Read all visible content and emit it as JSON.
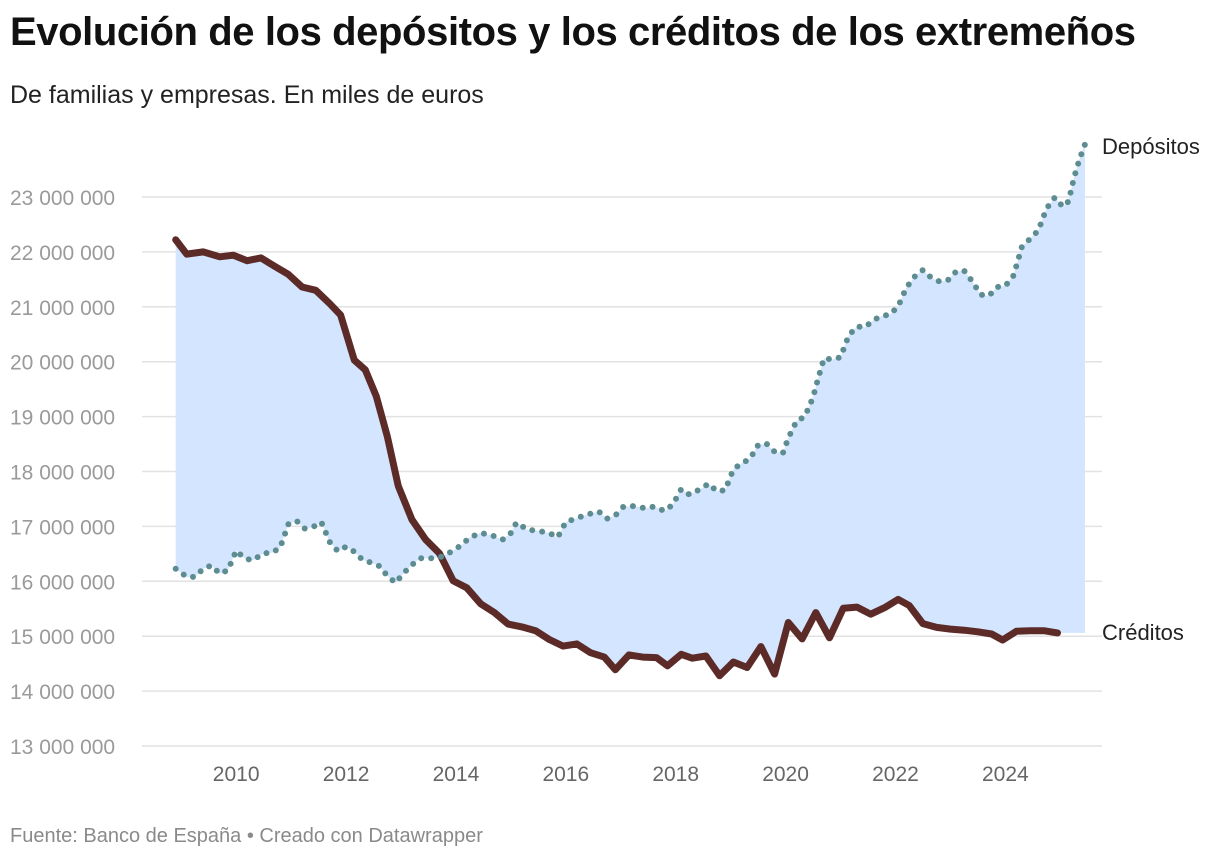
{
  "chart_data": {
    "type": "line",
    "title": "Evolución de los depósitos y los créditos de los extremeños",
    "subtitle": "De familias y empresas. En miles de euros",
    "source": "Fuente: Banco de España • Creado con Datawrapper",
    "xlim": [
      2008.65,
      2025.45
    ],
    "ylim": [
      12800000,
      24150000
    ],
    "y_ticks": [
      13000000,
      14000000,
      15000000,
      16000000,
      17000000,
      18000000,
      19000000,
      20000000,
      21000000,
      22000000,
      23000000
    ],
    "y_tick_labels": [
      "13 000 000",
      "14 000 000",
      "15 000 000",
      "16 000 000",
      "17 000 000",
      "18 000 000",
      "19 000 000",
      "20 000 000",
      "21 000 000",
      "22 000 000",
      "23 000 000"
    ],
    "x_ticks": [
      2010,
      2012,
      2014,
      2016,
      2018,
      2020,
      2022,
      2024
    ],
    "x_tick_labels": [
      "2010",
      "2012",
      "2014",
      "2016",
      "2018",
      "2020",
      "2022",
      "2024"
    ],
    "grid": true,
    "shaded_area_between_series": true,
    "colors": {
      "depositos": "#5e8d91",
      "creditos": "#5c2b27",
      "area": "#d3e5ff",
      "grid": "#e2e2e2"
    },
    "series": [
      {
        "name": "Depósitos",
        "style": "dotted",
        "points": [
          [
            2008.9,
            16230000
          ],
          [
            2009.1,
            16080000
          ],
          [
            2009.25,
            16080000
          ],
          [
            2009.4,
            16230000
          ],
          [
            2009.55,
            16290000
          ],
          [
            2009.7,
            16140000
          ],
          [
            2009.85,
            16200000
          ],
          [
            2010.0,
            16560000
          ],
          [
            2010.15,
            16420000
          ],
          [
            2010.3,
            16380000
          ],
          [
            2010.5,
            16510000
          ],
          [
            2010.65,
            16520000
          ],
          [
            2010.8,
            16610000
          ],
          [
            2010.95,
            17040000
          ],
          [
            2011.1,
            17100000
          ],
          [
            2011.25,
            16960000
          ],
          [
            2011.4,
            16990000
          ],
          [
            2011.55,
            17080000
          ],
          [
            2011.7,
            16720000
          ],
          [
            2011.85,
            16550000
          ],
          [
            2012.0,
            16630000
          ],
          [
            2012.15,
            16540000
          ],
          [
            2012.3,
            16390000
          ],
          [
            2012.45,
            16340000
          ],
          [
            2012.6,
            16280000
          ],
          [
            2012.75,
            16100000
          ],
          [
            2012.9,
            15970000
          ],
          [
            2013.05,
            16150000
          ],
          [
            2013.2,
            16300000
          ],
          [
            2013.35,
            16420000
          ],
          [
            2013.55,
            16420000
          ],
          [
            2013.75,
            16450000
          ],
          [
            2013.95,
            16560000
          ],
          [
            2014.1,
            16660000
          ],
          [
            2014.25,
            16800000
          ],
          [
            2014.45,
            16880000
          ],
          [
            2014.65,
            16840000
          ],
          [
            2014.85,
            16760000
          ],
          [
            2015.0,
            16880000
          ],
          [
            2015.1,
            17070000
          ],
          [
            2015.3,
            16940000
          ],
          [
            2015.5,
            16920000
          ],
          [
            2015.7,
            16880000
          ],
          [
            2015.85,
            16800000
          ],
          [
            2016.0,
            17080000
          ],
          [
            2016.2,
            17150000
          ],
          [
            2016.4,
            17220000
          ],
          [
            2016.6,
            17270000
          ],
          [
            2016.75,
            17140000
          ],
          [
            2016.9,
            17200000
          ],
          [
            2017.05,
            17360000
          ],
          [
            2017.25,
            17370000
          ],
          [
            2017.45,
            17330000
          ],
          [
            2017.6,
            17360000
          ],
          [
            2017.8,
            17280000
          ],
          [
            2017.95,
            17400000
          ],
          [
            2018.1,
            17680000
          ],
          [
            2018.25,
            17580000
          ],
          [
            2018.45,
            17680000
          ],
          [
            2018.6,
            17780000
          ],
          [
            2018.75,
            17640000
          ],
          [
            2018.9,
            17660000
          ],
          [
            2019.05,
            18040000
          ],
          [
            2019.2,
            18150000
          ],
          [
            2019.35,
            18230000
          ],
          [
            2019.5,
            18480000
          ],
          [
            2019.65,
            18510000
          ],
          [
            2019.8,
            18360000
          ],
          [
            2019.95,
            18330000
          ],
          [
            2020.05,
            18610000
          ],
          [
            2020.2,
            18920000
          ],
          [
            2020.35,
            19000000
          ],
          [
            2020.5,
            19350000
          ],
          [
            2020.6,
            19720000
          ],
          [
            2020.7,
            20060000
          ],
          [
            2020.85,
            20040000
          ],
          [
            2021.0,
            20080000
          ],
          [
            2021.15,
            20480000
          ],
          [
            2021.3,
            20640000
          ],
          [
            2021.45,
            20630000
          ],
          [
            2021.6,
            20760000
          ],
          [
            2021.75,
            20830000
          ],
          [
            2021.9,
            20860000
          ],
          [
            2022.05,
            21010000
          ],
          [
            2022.2,
            21350000
          ],
          [
            2022.35,
            21550000
          ],
          [
            2022.5,
            21670000
          ],
          [
            2022.65,
            21530000
          ],
          [
            2022.8,
            21460000
          ],
          [
            2022.95,
            21480000
          ],
          [
            2023.1,
            21640000
          ],
          [
            2023.25,
            21660000
          ],
          [
            2023.4,
            21460000
          ],
          [
            2023.55,
            21220000
          ],
          [
            2023.7,
            21200000
          ],
          [
            2023.85,
            21360000
          ],
          [
            2024.0,
            21380000
          ],
          [
            2024.15,
            21570000
          ],
          [
            2024.3,
            22090000
          ],
          [
            2024.45,
            22240000
          ],
          [
            2024.6,
            22390000
          ],
          [
            2024.75,
            22790000
          ],
          [
            2024.9,
            22990000
          ],
          [
            2025.05,
            22820000
          ],
          [
            2025.15,
            22920000
          ],
          [
            2025.25,
            23350000
          ],
          [
            2025.35,
            23690000
          ],
          [
            2025.45,
            23960000
          ]
        ]
      },
      {
        "name": "Créditos",
        "style": "solid",
        "points": [
          [
            2008.9,
            22220000
          ],
          [
            2009.1,
            21960000
          ],
          [
            2009.4,
            22000000
          ],
          [
            2009.7,
            21910000
          ],
          [
            2009.95,
            21940000
          ],
          [
            2010.2,
            21840000
          ],
          [
            2010.45,
            21890000
          ],
          [
            2010.7,
            21740000
          ],
          [
            2010.95,
            21590000
          ],
          [
            2011.2,
            21360000
          ],
          [
            2011.45,
            21300000
          ],
          [
            2011.7,
            21060000
          ],
          [
            2011.9,
            20850000
          ],
          [
            2012.15,
            20030000
          ],
          [
            2012.35,
            19850000
          ],
          [
            2012.55,
            19370000
          ],
          [
            2012.75,
            18640000
          ],
          [
            2012.95,
            17740000
          ],
          [
            2013.2,
            17120000
          ],
          [
            2013.45,
            16760000
          ],
          [
            2013.7,
            16510000
          ],
          [
            2013.95,
            16010000
          ],
          [
            2014.2,
            15880000
          ],
          [
            2014.45,
            15590000
          ],
          [
            2014.7,
            15430000
          ],
          [
            2014.95,
            15220000
          ],
          [
            2015.2,
            15170000
          ],
          [
            2015.45,
            15100000
          ],
          [
            2015.7,
            14940000
          ],
          [
            2015.95,
            14820000
          ],
          [
            2016.2,
            14860000
          ],
          [
            2016.45,
            14700000
          ],
          [
            2016.7,
            14620000
          ],
          [
            2016.9,
            14390000
          ],
          [
            2017.15,
            14660000
          ],
          [
            2017.4,
            14620000
          ],
          [
            2017.65,
            14610000
          ],
          [
            2017.85,
            14460000
          ],
          [
            2018.1,
            14670000
          ],
          [
            2018.3,
            14600000
          ],
          [
            2018.55,
            14640000
          ],
          [
            2018.8,
            14280000
          ],
          [
            2019.05,
            14530000
          ],
          [
            2019.3,
            14430000
          ],
          [
            2019.55,
            14810000
          ],
          [
            2019.8,
            14310000
          ],
          [
            2020.05,
            15250000
          ],
          [
            2020.3,
            14950000
          ],
          [
            2020.55,
            15430000
          ],
          [
            2020.8,
            14970000
          ],
          [
            2021.05,
            15510000
          ],
          [
            2021.3,
            15530000
          ],
          [
            2021.55,
            15400000
          ],
          [
            2021.8,
            15520000
          ],
          [
            2022.05,
            15670000
          ],
          [
            2022.25,
            15560000
          ],
          [
            2022.5,
            15230000
          ],
          [
            2022.75,
            15160000
          ],
          [
            2023.0,
            15130000
          ],
          [
            2023.25,
            15110000
          ],
          [
            2023.5,
            15080000
          ],
          [
            2023.75,
            15040000
          ],
          [
            2023.95,
            14930000
          ],
          [
            2024.2,
            15090000
          ],
          [
            2024.45,
            15100000
          ],
          [
            2024.7,
            15100000
          ],
          [
            2024.95,
            15060000
          ]
        ]
      }
    ]
  }
}
